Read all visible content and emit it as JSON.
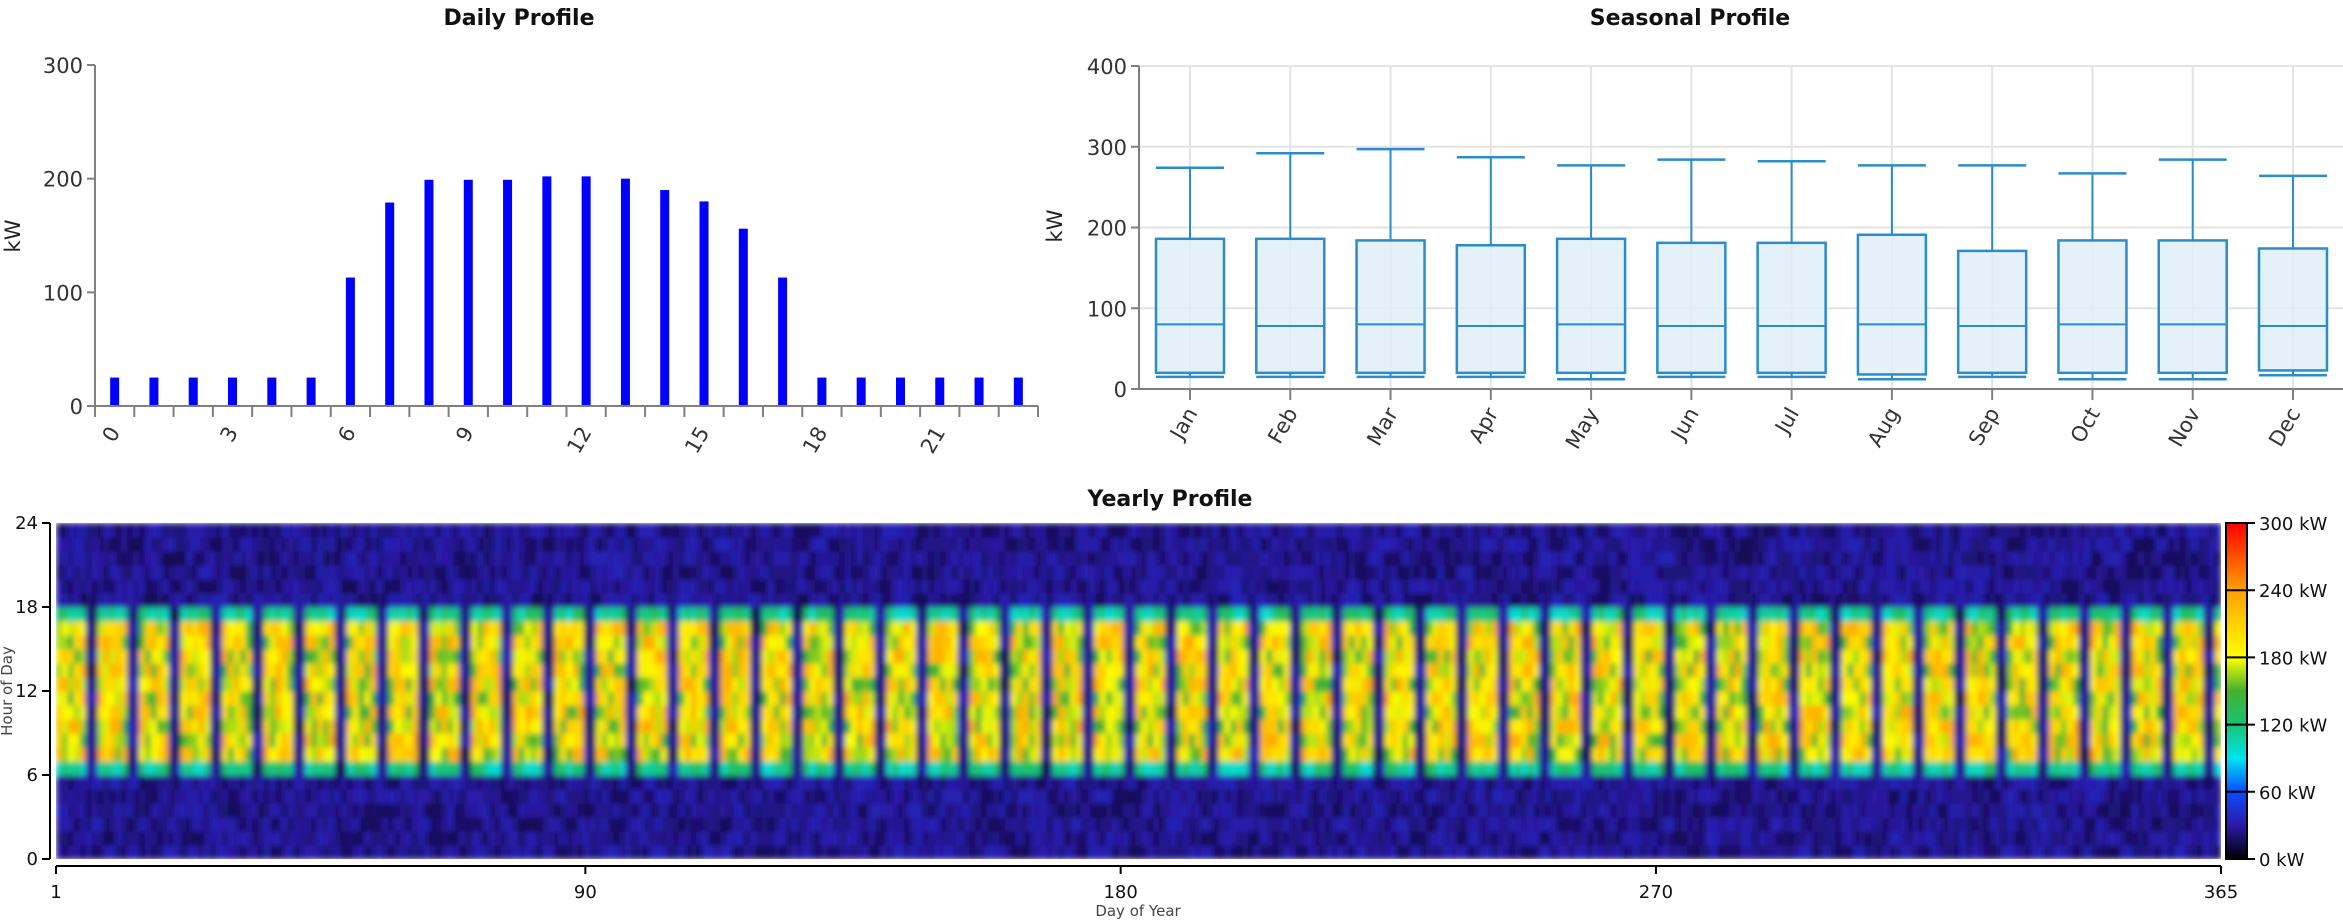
{
  "chart_data": [
    {
      "type": "bar",
      "title": "Daily Profile",
      "xlabel": "",
      "ylabel": "kW",
      "ylim": [
        0,
        300
      ],
      "yticks": [
        "0",
        "100",
        "200",
        "300"
      ],
      "xtick_labels": [
        "0",
        "3",
        "6",
        "9",
        "12",
        "15",
        "18",
        "21"
      ],
      "categories": [
        0,
        1,
        2,
        3,
        4,
        5,
        6,
        7,
        8,
        9,
        10,
        11,
        12,
        13,
        14,
        15,
        16,
        17,
        18,
        19,
        20,
        21,
        22,
        23
      ],
      "values": [
        25,
        25,
        25,
        25,
        25,
        25,
        113,
        179,
        199,
        199,
        199,
        202,
        202,
        200,
        190,
        180,
        156,
        113,
        25,
        25,
        25,
        25,
        25,
        25
      ],
      "color": "#0000ff",
      "grid": false
    },
    {
      "type": "box",
      "title": "Seasonal Profile",
      "xlabel": "",
      "ylabel": "kW",
      "ylim": [
        0,
        400
      ],
      "yticks": [
        "0",
        "100",
        "200",
        "300",
        "400"
      ],
      "categories": [
        "Jan",
        "Feb",
        "Mar",
        "Apr",
        "May",
        "Jun",
        "Jul",
        "Aug",
        "Sep",
        "Oct",
        "Nov",
        "Dec"
      ],
      "series": [
        {
          "name": "min",
          "values": [
            15,
            15,
            15,
            15,
            12,
            15,
            15,
            12,
            15,
            12,
            12,
            17
          ]
        },
        {
          "name": "q1",
          "values": [
            20,
            20,
            20,
            20,
            20,
            20,
            20,
            18,
            20,
            20,
            20,
            23
          ]
        },
        {
          "name": "median",
          "values": [
            80,
            78,
            80,
            78,
            80,
            78,
            78,
            80,
            78,
            80,
            80,
            78
          ]
        },
        {
          "name": "q3",
          "values": [
            186,
            186,
            184,
            178,
            186,
            181,
            181,
            191,
            171,
            184,
            184,
            174
          ]
        },
        {
          "name": "max",
          "values": [
            274,
            292,
            297,
            287,
            277,
            284,
            282,
            277,
            277,
            267,
            284,
            264
          ]
        }
      ],
      "box_color": "#2b8ccb",
      "fill_color": "#e1eff7",
      "grid": true
    },
    {
      "type": "heatmap",
      "title": "Yearly Profile",
      "xlabel": "Day of Year",
      "ylabel": "Hour of Day",
      "xlim": [
        1,
        365
      ],
      "ylim": [
        0,
        24
      ],
      "xticks": [
        "1",
        "90",
        "180",
        "270",
        "365"
      ],
      "yticks": [
        "0",
        "6",
        "12",
        "18",
        "24"
      ],
      "pattern": {
        "on_days_per_week": 5,
        "off_days_per_week": 2,
        "active_hours": [
          6,
          18
        ],
        "active_level_kW": 190,
        "idle_level_kW": 25
      },
      "colorbar": {
        "range": [
          0,
          300
        ],
        "tick_labels": [
          "0 kW",
          "60 kW",
          "120 kW",
          "180 kW",
          "240 kW",
          "300 kW"
        ],
        "stops": [
          {
            "v": 0,
            "color": "#000000"
          },
          {
            "v": 30,
            "color": "#2a1aa8"
          },
          {
            "v": 60,
            "color": "#0a4cff"
          },
          {
            "v": 90,
            "color": "#00e5f0"
          },
          {
            "v": 120,
            "color": "#18c470"
          },
          {
            "v": 150,
            "color": "#44b030"
          },
          {
            "v": 180,
            "color": "#ffff00"
          },
          {
            "v": 240,
            "color": "#ffa000"
          },
          {
            "v": 300,
            "color": "#ff0000"
          }
        ]
      }
    }
  ]
}
